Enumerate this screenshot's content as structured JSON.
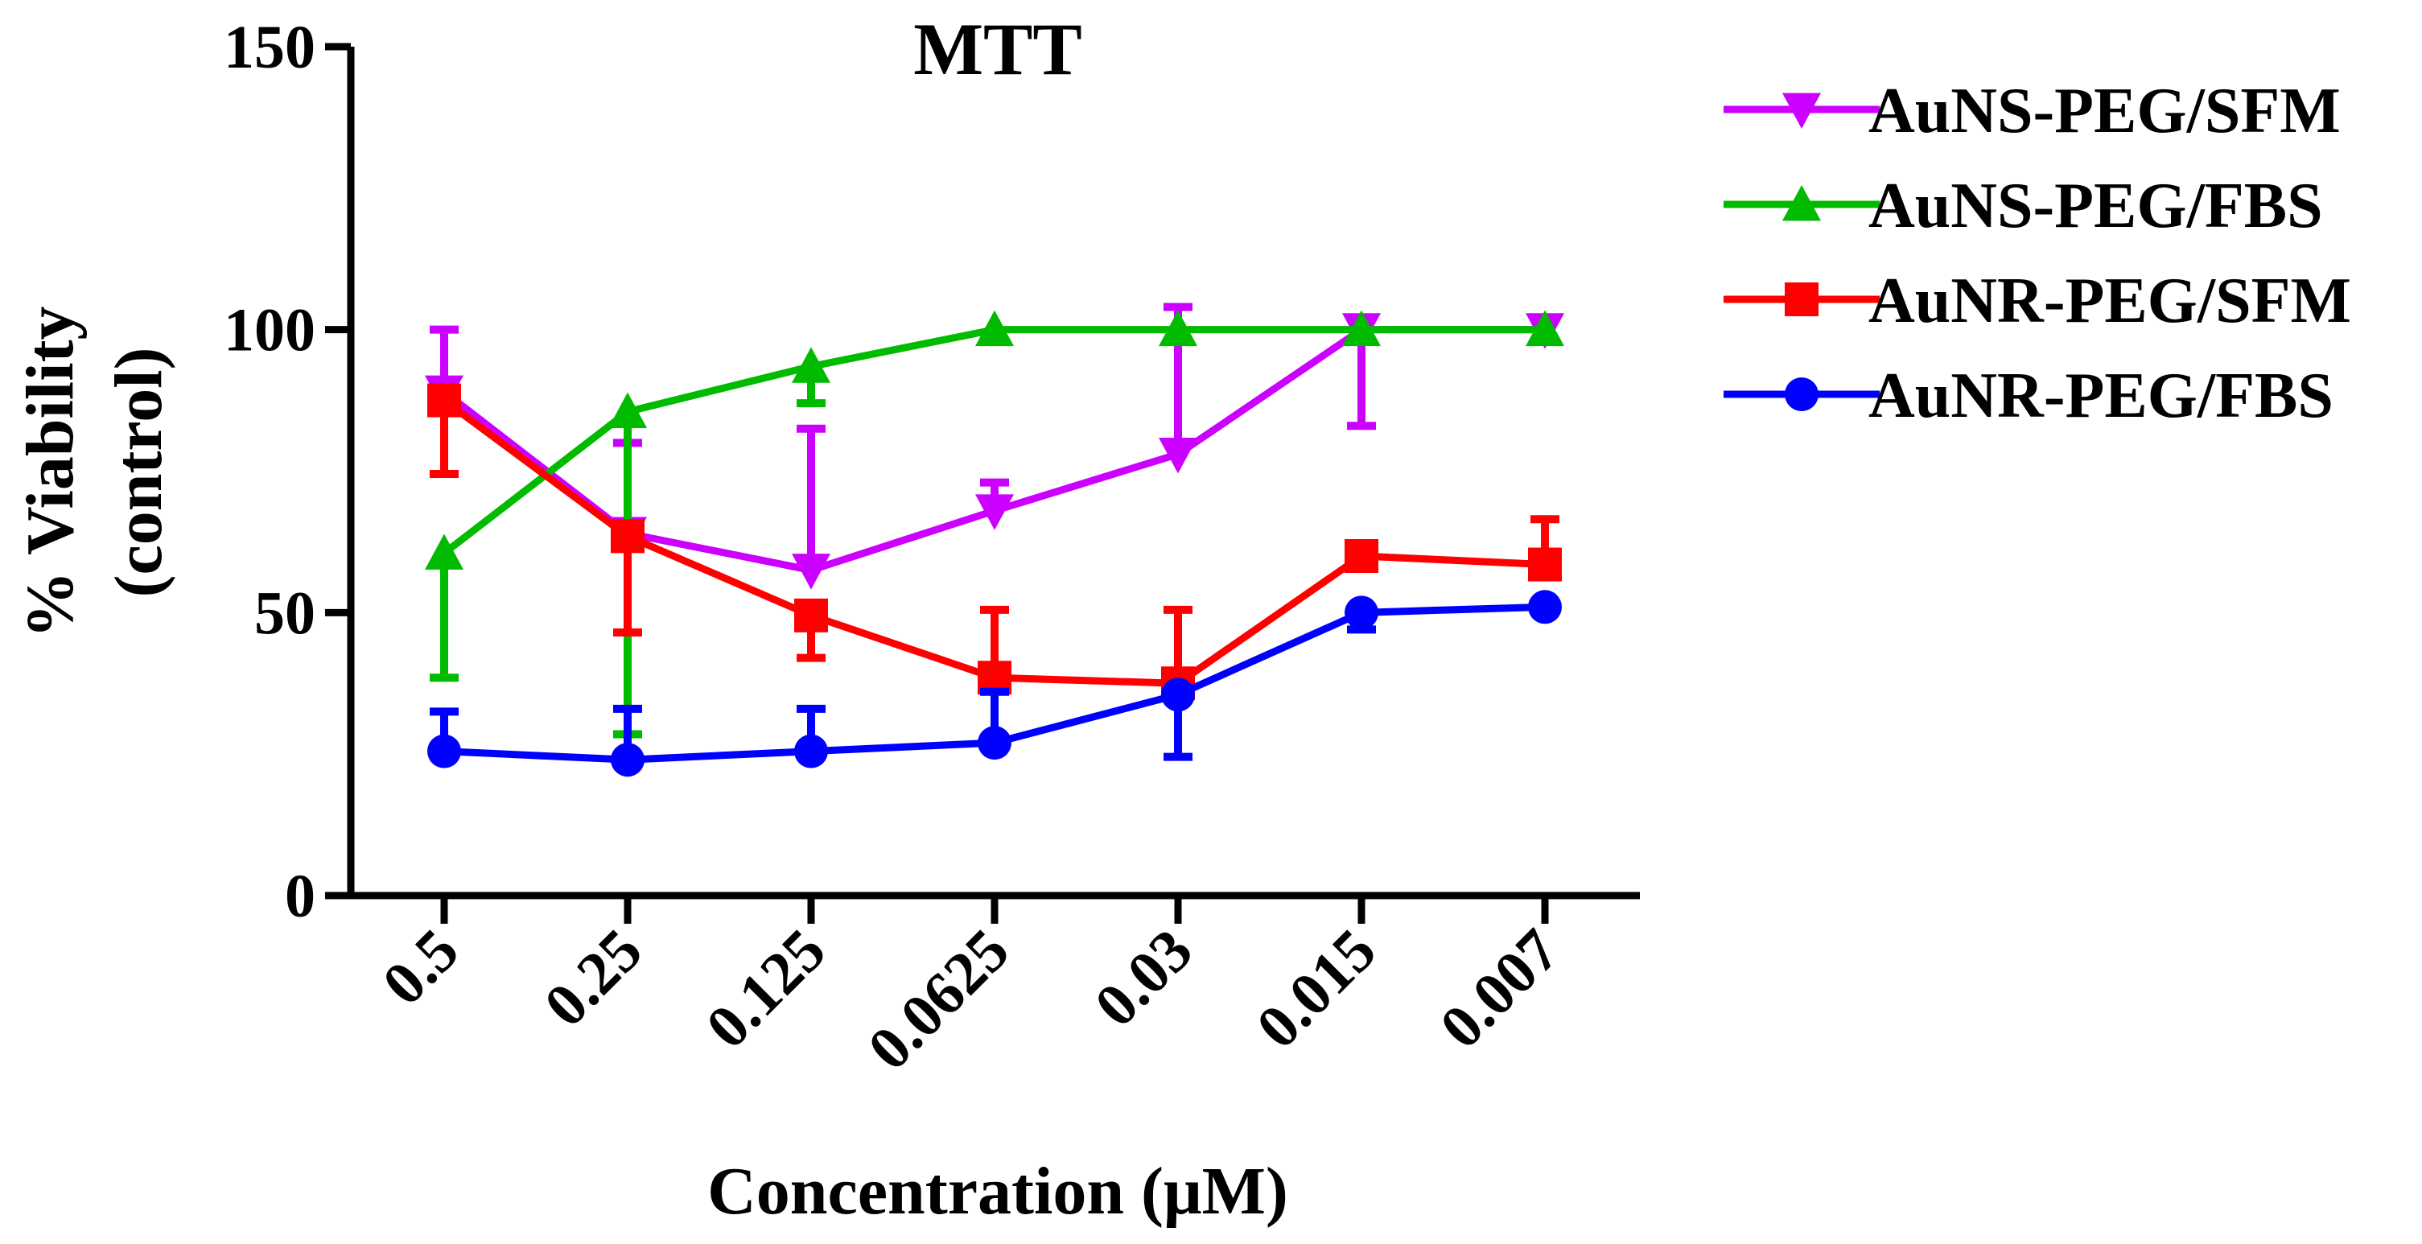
{
  "chart_data": {
    "type": "line",
    "title": "MTT",
    "xlabel": "Concentration (μM)",
    "ylabel_line1": "% Viability",
    "ylabel_line2": "(control)",
    "categories": [
      "0.5",
      "0.25",
      "0.125",
      "0.0625",
      "0.03",
      "0.015",
      "0.007"
    ],
    "ylim": [
      0,
      150
    ],
    "yticks": [
      0,
      50,
      100,
      150
    ],
    "ytick_labels": [
      "0",
      "50",
      "100",
      "150"
    ],
    "legend_position": "right",
    "series": [
      {
        "name": "AuNS-PEG/SFM",
        "color": "#cc00ff",
        "marker": "triangle-down",
        "values": [
          89,
          64,
          57.5,
          68,
          78,
          100,
          100
        ],
        "error": [
          11,
          16,
          25,
          5,
          26,
          17,
          0
        ]
      },
      {
        "name": "AuNS-PEG/FBS",
        "color": "#00bb00",
        "marker": "triangle-up",
        "values": [
          60.5,
          85.5,
          93.5,
          100,
          100,
          100,
          100
        ],
        "error": [
          22,
          57,
          6.5,
          0,
          0,
          0,
          0
        ]
      },
      {
        "name": "AuNR-PEG/SFM",
        "color": "#ff0000",
        "marker": "square",
        "values": [
          87.5,
          63.5,
          49.5,
          38.5,
          37.5,
          60,
          58.5
        ],
        "error": [
          13,
          17,
          7.5,
          12,
          13,
          0,
          8
        ]
      },
      {
        "name": "AuNR-PEG/FBS",
        "color": "#0000ff",
        "marker": "circle",
        "values": [
          25.5,
          24,
          25.5,
          27,
          35.5,
          50,
          51
        ],
        "error": [
          7,
          9,
          7.5,
          9,
          11,
          3,
          0
        ]
      }
    ]
  }
}
